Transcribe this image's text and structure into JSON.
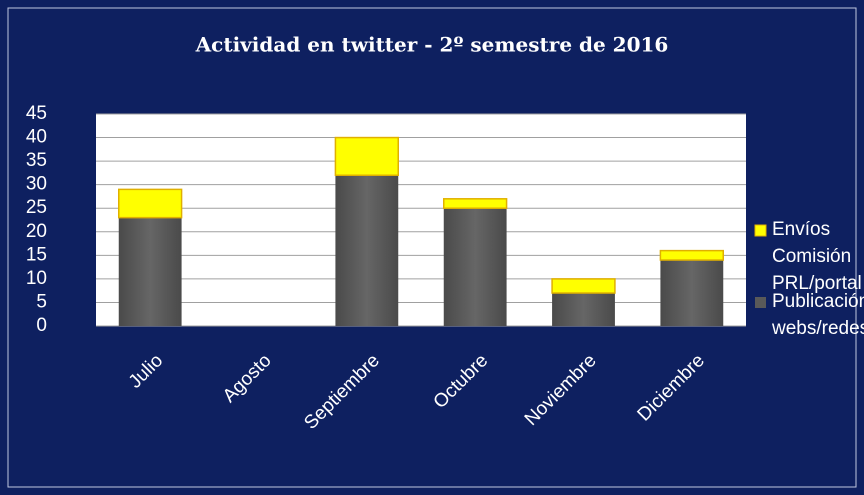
{
  "chart_data": {
    "type": "stacked_bar",
    "title": "Actividad en twitter - 2º semestre de 2016",
    "categories": [
      "Julio",
      "Agosto",
      "Septiembre",
      "Octubre",
      "Noviembre",
      "Diciembre"
    ],
    "series": [
      {
        "name": "Publicación webs/redes",
        "color": "#595959",
        "values": [
          23,
          0,
          32,
          25,
          7,
          14
        ]
      },
      {
        "name": "Envíos Comisión PRL/portal",
        "color": "#ffff00",
        "values": [
          6,
          0,
          8,
          2,
          3,
          2
        ]
      }
    ],
    "ylim": [
      0,
      45
    ],
    "yticks": [
      0,
      5,
      10,
      15,
      20,
      25,
      30,
      35,
      40,
      45
    ],
    "grid": true,
    "legend": "right"
  }
}
